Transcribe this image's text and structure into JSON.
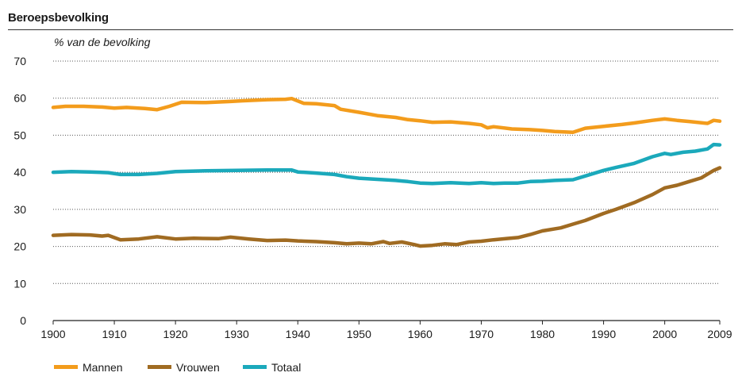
{
  "header": {
    "title": "Beroepsbevolking"
  },
  "chart_data": {
    "type": "line",
    "title": "Beroepsbevolking",
    "ylabel": "% van de bevolking",
    "xlabel": "",
    "xlim": [
      1900,
      2009
    ],
    "ylim": [
      0,
      70
    ],
    "x_ticks": [
      1900,
      1910,
      1920,
      1930,
      1940,
      1950,
      1960,
      1970,
      1980,
      1990,
      2000,
      2009
    ],
    "y_ticks": [
      0,
      10,
      20,
      30,
      40,
      50,
      60,
      70
    ],
    "grid": "horizontal-dotted",
    "legend_position": "bottom-left",
    "series": [
      {
        "name": "Mannen",
        "color": "#f39c1c",
        "points": [
          [
            1900,
            57.5
          ],
          [
            1902,
            57.8
          ],
          [
            1905,
            57.8
          ],
          [
            1908,
            57.6
          ],
          [
            1910,
            57.3
          ],
          [
            1912,
            57.5
          ],
          [
            1915,
            57.2
          ],
          [
            1917,
            56.9
          ],
          [
            1919,
            57.8
          ],
          [
            1921,
            58.9
          ],
          [
            1925,
            58.8
          ],
          [
            1929,
            59.1
          ],
          [
            1931,
            59.3
          ],
          [
            1935,
            59.6
          ],
          [
            1938,
            59.7
          ],
          [
            1939,
            59.9
          ],
          [
            1941,
            58.6
          ],
          [
            1943,
            58.5
          ],
          [
            1946,
            58.0
          ],
          [
            1947,
            57.0
          ],
          [
            1950,
            56.2
          ],
          [
            1953,
            55.3
          ],
          [
            1956,
            54.8
          ],
          [
            1958,
            54.2
          ],
          [
            1960,
            53.9
          ],
          [
            1962,
            53.5
          ],
          [
            1965,
            53.6
          ],
          [
            1968,
            53.2
          ],
          [
            1970,
            52.8
          ],
          [
            1971,
            52.0
          ],
          [
            1972,
            52.3
          ],
          [
            1975,
            51.7
          ],
          [
            1978,
            51.5
          ],
          [
            1980,
            51.3
          ],
          [
            1982,
            51.0
          ],
          [
            1985,
            50.8
          ],
          [
            1987,
            51.9
          ],
          [
            1990,
            52.4
          ],
          [
            1993,
            52.9
          ],
          [
            1995,
            53.3
          ],
          [
            1998,
            54.0
          ],
          [
            2000,
            54.4
          ],
          [
            2002,
            54.0
          ],
          [
            2004,
            53.7
          ],
          [
            2007,
            53.2
          ],
          [
            2008,
            54.0
          ],
          [
            2009,
            53.8
          ]
        ]
      },
      {
        "name": "Vrouwen",
        "color": "#a06b22",
        "points": [
          [
            1900,
            23.0
          ],
          [
            1903,
            23.2
          ],
          [
            1906,
            23.1
          ],
          [
            1908,
            22.8
          ],
          [
            1909,
            23.0
          ],
          [
            1911,
            21.8
          ],
          [
            1914,
            22.0
          ],
          [
            1917,
            22.6
          ],
          [
            1920,
            22.0
          ],
          [
            1923,
            22.2
          ],
          [
            1927,
            22.1
          ],
          [
            1929,
            22.5
          ],
          [
            1932,
            22.0
          ],
          [
            1935,
            21.6
          ],
          [
            1938,
            21.7
          ],
          [
            1940,
            21.5
          ],
          [
            1943,
            21.3
          ],
          [
            1946,
            21.0
          ],
          [
            1948,
            20.7
          ],
          [
            1950,
            20.9
          ],
          [
            1952,
            20.7
          ],
          [
            1954,
            21.3
          ],
          [
            1955,
            20.8
          ],
          [
            1957,
            21.2
          ],
          [
            1959,
            20.5
          ],
          [
            1960,
            20.1
          ],
          [
            1962,
            20.3
          ],
          [
            1964,
            20.7
          ],
          [
            1966,
            20.5
          ],
          [
            1968,
            21.2
          ],
          [
            1970,
            21.4
          ],
          [
            1972,
            21.8
          ],
          [
            1974,
            22.1
          ],
          [
            1976,
            22.4
          ],
          [
            1978,
            23.2
          ],
          [
            1980,
            24.2
          ],
          [
            1983,
            25.0
          ],
          [
            1985,
            26.0
          ],
          [
            1987,
            27.0
          ],
          [
            1990,
            28.9
          ],
          [
            1992,
            30.0
          ],
          [
            1995,
            31.8
          ],
          [
            1998,
            34.0
          ],
          [
            2000,
            35.8
          ],
          [
            2002,
            36.5
          ],
          [
            2004,
            37.5
          ],
          [
            2006,
            38.5
          ],
          [
            2008,
            40.5
          ],
          [
            2009,
            41.2
          ]
        ]
      },
      {
        "name": "Totaal",
        "color": "#1ba9bb",
        "points": [
          [
            1900,
            40.0
          ],
          [
            1903,
            40.2
          ],
          [
            1906,
            40.1
          ],
          [
            1909,
            39.9
          ],
          [
            1911,
            39.4
          ],
          [
            1914,
            39.4
          ],
          [
            1917,
            39.7
          ],
          [
            1920,
            40.2
          ],
          [
            1925,
            40.4
          ],
          [
            1930,
            40.5
          ],
          [
            1935,
            40.6
          ],
          [
            1939,
            40.6
          ],
          [
            1940,
            40.1
          ],
          [
            1943,
            39.8
          ],
          [
            1946,
            39.4
          ],
          [
            1948,
            38.8
          ],
          [
            1950,
            38.4
          ],
          [
            1953,
            38.1
          ],
          [
            1956,
            37.8
          ],
          [
            1958,
            37.5
          ],
          [
            1960,
            37.1
          ],
          [
            1962,
            37.0
          ],
          [
            1965,
            37.2
          ],
          [
            1968,
            37.0
          ],
          [
            1970,
            37.2
          ],
          [
            1972,
            37.0
          ],
          [
            1974,
            37.1
          ],
          [
            1976,
            37.1
          ],
          [
            1978,
            37.5
          ],
          [
            1980,
            37.6
          ],
          [
            1982,
            37.8
          ],
          [
            1985,
            38.0
          ],
          [
            1987,
            39.0
          ],
          [
            1990,
            40.5
          ],
          [
            1992,
            41.3
          ],
          [
            1995,
            42.4
          ],
          [
            1998,
            44.2
          ],
          [
            2000,
            45.1
          ],
          [
            2001,
            44.8
          ],
          [
            2003,
            45.4
          ],
          [
            2005,
            45.7
          ],
          [
            2007,
            46.3
          ],
          [
            2008,
            47.5
          ],
          [
            2009,
            47.4
          ]
        ]
      }
    ]
  }
}
